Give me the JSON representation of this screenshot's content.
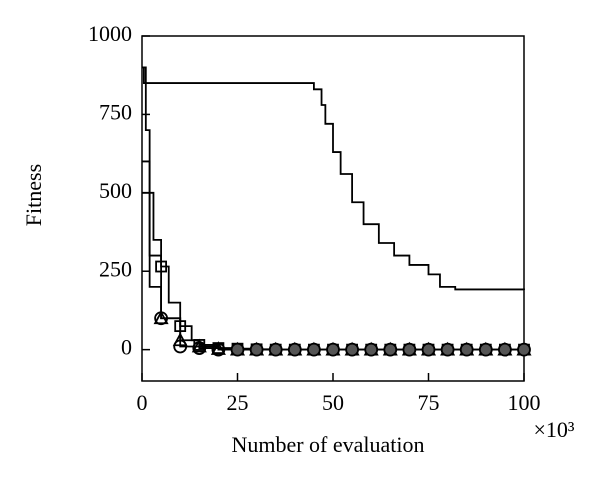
{
  "chart_data": {
    "type": "line",
    "x_label": "Number of evaluation",
    "y_label": "Fitness",
    "x_multiplier": "×10³",
    "xlim": [
      0,
      100
    ],
    "ylim": [
      -100,
      1000
    ],
    "xticks": [
      0,
      25,
      50,
      75,
      100
    ],
    "yticks": [
      0,
      250,
      500,
      750,
      1000
    ],
    "series": [
      {
        "color": "#000000",
        "marker": "none",
        "x": [
          0,
          0.5,
          42,
          45,
          47,
          48,
          50,
          52,
          55,
          58,
          62,
          66,
          70,
          75,
          78,
          82,
          100
        ],
        "values": [
          900,
          850,
          850,
          830,
          780,
          720,
          630,
          560,
          470,
          400,
          340,
          300,
          270,
          240,
          200,
          192,
          190
        ]
      },
      {
        "color": "#000000",
        "marker": "square",
        "x": [
          0,
          1,
          2,
          3,
          5,
          7,
          10,
          13,
          15,
          20,
          25,
          30,
          35,
          40,
          45,
          50,
          55,
          60,
          65,
          70,
          75,
          80,
          85,
          90,
          95,
          100
        ],
        "values": [
          900,
          700,
          500,
          350,
          265,
          150,
          75,
          30,
          15,
          5,
          3,
          1,
          0,
          0,
          0,
          0,
          0,
          0,
          0,
          0,
          0,
          0,
          0,
          0,
          0,
          0
        ]
      },
      {
        "color": "#000000",
        "marker": "triangle",
        "x": [
          0,
          2,
          5,
          10,
          15,
          20,
          25,
          30,
          35,
          40,
          45,
          50,
          55,
          60,
          65,
          70,
          75,
          80,
          85,
          90,
          95,
          100
        ],
        "values": [
          600,
          300,
          100,
          30,
          10,
          2,
          0,
          0,
          0,
          0,
          0,
          0,
          0,
          0,
          0,
          0,
          0,
          0,
          0,
          0,
          0,
          0
        ]
      },
      {
        "color": "#000000",
        "marker": "circle",
        "x": [
          0,
          2,
          5,
          10,
          15,
          20,
          25,
          30,
          35,
          40,
          45,
          50,
          55,
          60,
          65,
          70,
          75,
          80,
          85,
          90,
          95,
          100
        ],
        "values": [
          500,
          200,
          100,
          10,
          5,
          0,
          0,
          0,
          0,
          0,
          0,
          0,
          0,
          0,
          0,
          0,
          0,
          0,
          0,
          0,
          0,
          0
        ]
      }
    ]
  }
}
